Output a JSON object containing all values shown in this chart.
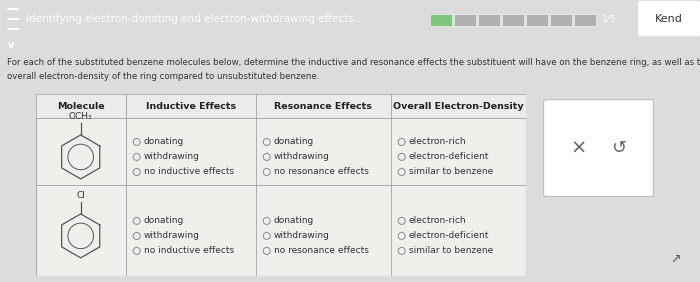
{
  "header_bg": "#3db5c8",
  "header_text": "Identifying electron-donating and electron-withdrawing effects...",
  "progress_green": "#7ec87e",
  "progress_gray": "#b0b0b0",
  "progress_text": "1/5",
  "kend_text": "Kend",
  "body_bg": "#dcdcdc",
  "chevron_bg": "#5aaab8",
  "instruction_text1": "For each of the substituted benzene molecules below, determine the inductive and resonance effects the substituent will have on the benzene ring, as well as the",
  "instruction_text2": "overall electron-density of the ring compared to unsubstituted benzene.",
  "table_headers": [
    "Molecule",
    "Inductive Effects",
    "Resonance Effects",
    "Overall Electron-Density"
  ],
  "row1_label": "OCH₃",
  "row2_label": "Cl",
  "inductive_options": [
    "donating",
    "withdrawing",
    "no inductive effects"
  ],
  "resonance_options": [
    "donating",
    "withdrawing",
    "no resonance effects"
  ],
  "overall_options": [
    "electron-rich",
    "electron-deficient",
    "similar to benzene"
  ],
  "table_bg": "#f0efeb",
  "table_border": "#aaaaaa",
  "ring_color": "#555555",
  "text_color": "#333333",
  "circle_color": "#888888",
  "side_bg": "#e8e8e4",
  "side_border": "#bbbbbb"
}
